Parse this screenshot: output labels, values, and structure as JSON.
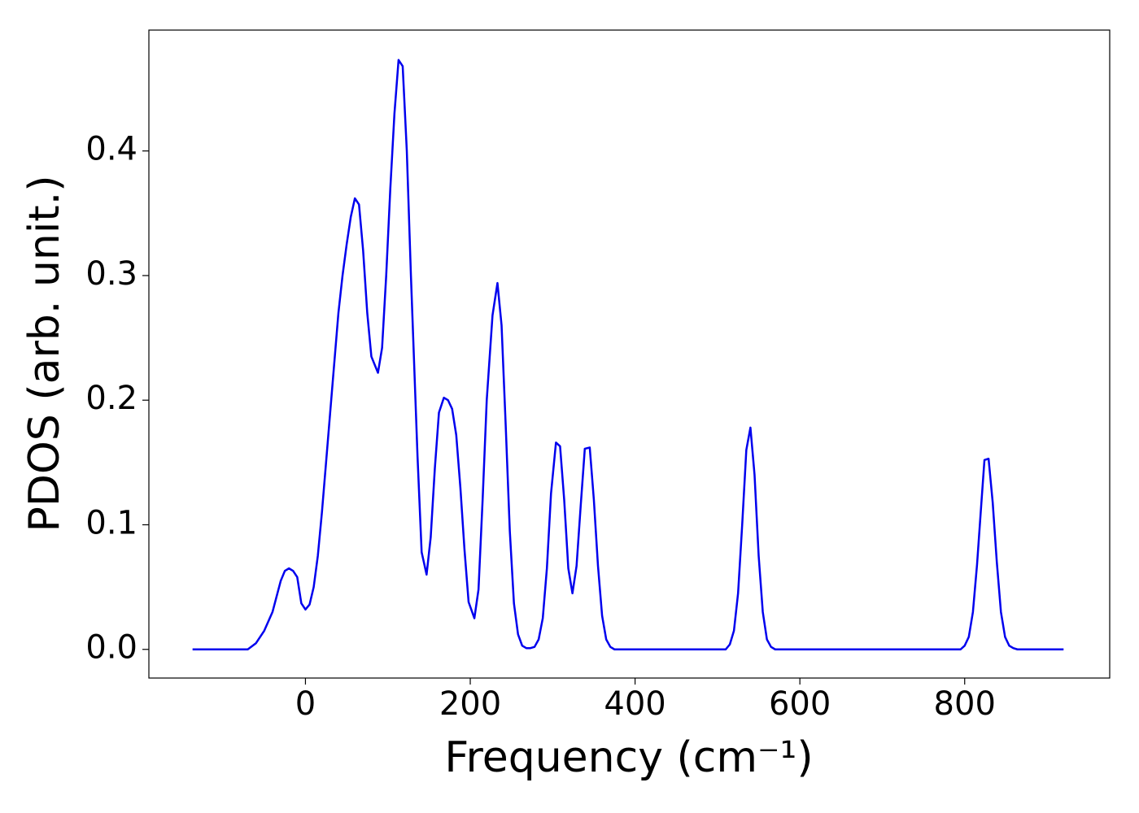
{
  "chart_data": {
    "type": "line",
    "xlabel": "Frequency (cm⁻¹)",
    "ylabel": "PDOS (arb. unit.)",
    "xlim": [
      -190,
      976
    ],
    "ylim": [
      -0.023,
      0.497
    ],
    "xticks": [
      0,
      200,
      400,
      600,
      800
    ],
    "yticks": [
      {
        "value": 0,
        "label": "0.0"
      },
      0.1,
      0.2,
      0.3,
      0.4
    ],
    "x": [
      -137,
      -70,
      -60,
      -50,
      -40,
      -30,
      -25,
      -20,
      -15,
      -10,
      -5,
      0,
      5,
      10,
      15,
      20,
      25,
      30,
      35,
      40,
      45,
      50,
      55,
      60,
      65,
      70,
      75,
      80,
      88,
      93,
      98,
      103,
      108,
      113,
      118,
      123,
      128,
      136,
      141,
      147,
      152,
      157,
      162,
      168,
      173,
      178,
      183,
      188,
      193,
      198,
      205,
      210,
      215,
      220,
      227,
      233,
      238,
      243,
      248,
      253,
      258,
      263,
      268,
      273,
      278,
      283,
      288,
      293,
      298,
      304,
      309,
      314,
      319,
      324,
      329,
      334,
      339,
      345,
      350,
      355,
      360,
      365,
      370,
      375,
      510,
      515,
      520,
      525,
      530,
      535,
      540,
      545,
      550,
      555,
      560,
      565,
      570,
      795,
      800,
      805,
      810,
      815,
      820,
      824,
      829,
      834,
      839,
      844,
      849,
      854,
      859,
      864,
      920
    ],
    "series": [
      {
        "name": "PDOS",
        "color": "#0000ee",
        "values": [
          0,
          0,
          0.005,
          0.015,
          0.03,
          0.055,
          0.063,
          0.065,
          0.063,
          0.058,
          0.037,
          0.032,
          0.036,
          0.05,
          0.075,
          0.11,
          0.15,
          0.19,
          0.23,
          0.27,
          0.3,
          0.325,
          0.347,
          0.362,
          0.357,
          0.32,
          0.27,
          0.235,
          0.222,
          0.242,
          0.3,
          0.37,
          0.43,
          0.473,
          0.468,
          0.4,
          0.3,
          0.155,
          0.078,
          0.06,
          0.09,
          0.145,
          0.19,
          0.202,
          0.2,
          0.193,
          0.172,
          0.13,
          0.08,
          0.038,
          0.025,
          0.048,
          0.12,
          0.2,
          0.268,
          0.294,
          0.26,
          0.18,
          0.095,
          0.037,
          0.012,
          0.003,
          0.001,
          0.001,
          0.002,
          0.008,
          0.025,
          0.065,
          0.125,
          0.166,
          0.163,
          0.12,
          0.065,
          0.045,
          0.067,
          0.115,
          0.161,
          0.162,
          0.12,
          0.067,
          0.027,
          0.008,
          0.002,
          0,
          0,
          0.004,
          0.015,
          0.045,
          0.1,
          0.16,
          0.178,
          0.14,
          0.075,
          0.03,
          0.008,
          0.002,
          0,
          0,
          0.003,
          0.01,
          0.03,
          0.068,
          0.115,
          0.152,
          0.153,
          0.118,
          0.07,
          0.03,
          0.01,
          0.003,
          0.001,
          0,
          0
        ]
      }
    ]
  }
}
